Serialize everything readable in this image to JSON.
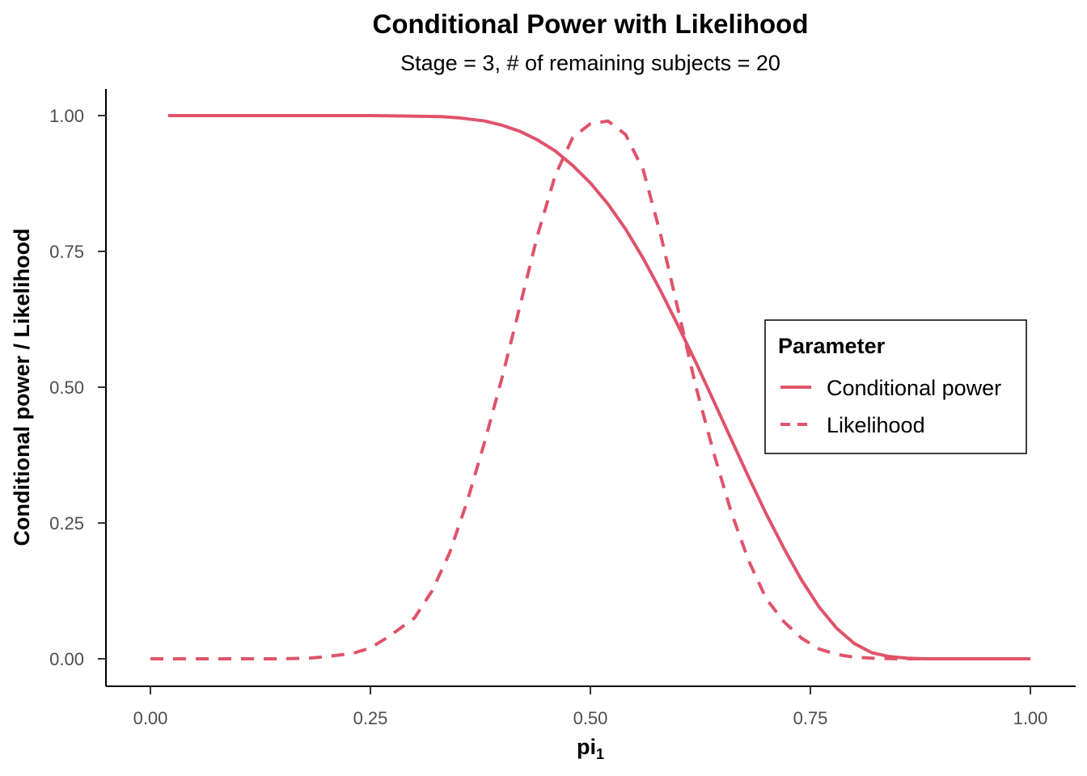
{
  "chart_data": {
    "type": "line",
    "title": "Conditional Power with Likelihood",
    "subtitle": "Stage = 3, # of remaining subjects = 20",
    "xlabel": {
      "main": "pi",
      "sub": "1"
    },
    "ylabel": "Conditional power / Likelihood",
    "xlim": [
      0,
      1
    ],
    "ylim": [
      0,
      1
    ],
    "x_ticks": [
      "0.00",
      "0.25",
      "0.50",
      "0.75",
      "1.00"
    ],
    "y_ticks": [
      "0.00",
      "0.25",
      "0.50",
      "0.75",
      "1.00"
    ],
    "grid": false,
    "legend": {
      "title": "Parameter",
      "position": "right",
      "entries": [
        "Conditional power",
        "Likelihood"
      ]
    },
    "color": "#df536b",
    "series": [
      {
        "name": "Conditional power",
        "line_style": "solid",
        "x": [
          0.02,
          0.05,
          0.1,
          0.15,
          0.2,
          0.25,
          0.3,
          0.33,
          0.35,
          0.38,
          0.4,
          0.42,
          0.44,
          0.46,
          0.48,
          0.5,
          0.52,
          0.54,
          0.56,
          0.58,
          0.6,
          0.62,
          0.64,
          0.66,
          0.68,
          0.7,
          0.72,
          0.74,
          0.76,
          0.78,
          0.8,
          0.82,
          0.84,
          0.86,
          0.88,
          0.9,
          0.95,
          1.0
        ],
        "y": [
          1.0,
          1.0,
          1.0,
          1.0,
          1.0,
          1.0,
          0.999,
          0.998,
          0.996,
          0.99,
          0.982,
          0.971,
          0.955,
          0.935,
          0.908,
          0.876,
          0.837,
          0.791,
          0.737,
          0.677,
          0.612,
          0.545,
          0.475,
          0.404,
          0.334,
          0.266,
          0.203,
          0.145,
          0.095,
          0.056,
          0.028,
          0.011,
          0.004,
          0.001,
          0.0,
          0.0,
          0.0,
          0.0
        ]
      },
      {
        "name": "Likelihood",
        "line_style": "dashed",
        "x": [
          0.0,
          0.05,
          0.1,
          0.15,
          0.18,
          0.2,
          0.23,
          0.25,
          0.27,
          0.3,
          0.32,
          0.34,
          0.36,
          0.38,
          0.4,
          0.42,
          0.44,
          0.46,
          0.48,
          0.5,
          0.52,
          0.54,
          0.56,
          0.58,
          0.6,
          0.62,
          0.64,
          0.66,
          0.68,
          0.7,
          0.72,
          0.74,
          0.76,
          0.78,
          0.8,
          0.82,
          0.85,
          0.9,
          1.0
        ],
        "y": [
          0.0,
          0.0,
          0.0,
          0.0,
          0.001,
          0.004,
          0.01,
          0.02,
          0.04,
          0.075,
          0.125,
          0.195,
          0.29,
          0.4,
          0.52,
          0.65,
          0.78,
          0.89,
          0.96,
          0.985,
          0.99,
          0.965,
          0.9,
          0.78,
          0.64,
          0.5,
          0.38,
          0.27,
          0.18,
          0.11,
          0.068,
          0.038,
          0.018,
          0.008,
          0.003,
          0.001,
          0.0,
          0.0,
          0.0
        ]
      }
    ]
  }
}
